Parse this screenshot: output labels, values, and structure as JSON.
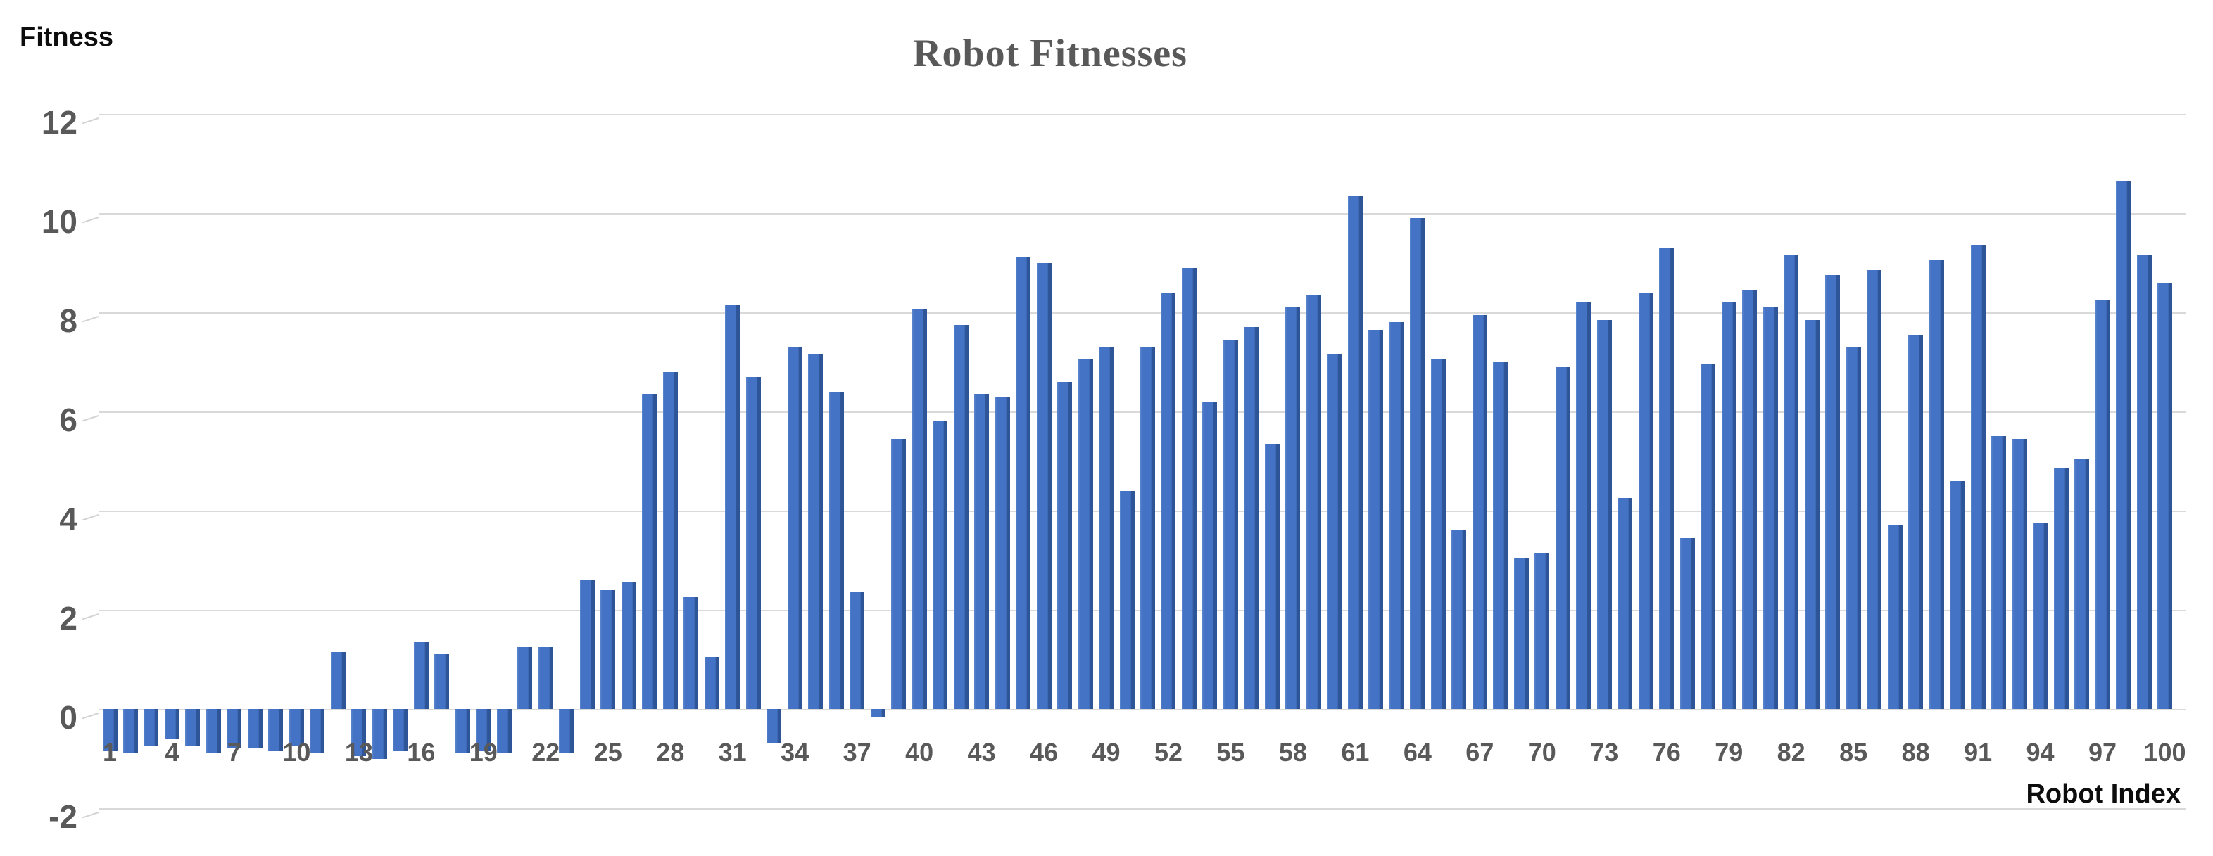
{
  "header": {
    "title": "Robot Fitnesses"
  },
  "y_axis": {
    "label": "Fitness"
  },
  "x_axis": {
    "label": "Robot Index"
  },
  "chart_data": {
    "type": "bar",
    "title": "Robot Fitnesses",
    "xlabel": "Robot Index",
    "ylabel": "Fitness",
    "ylim": [
      -2,
      12
    ],
    "grid": true,
    "legend": "none",
    "bar_color": "#4472C4",
    "bar_side_color": "#2E5597",
    "gridline_color": "#D9D9D9",
    "tick_color": "#595959",
    "title_color": "#595959",
    "y_ticks": [
      12,
      10,
      8,
      6,
      4,
      2,
      0,
      -2
    ],
    "x_tick_labels": [
      1,
      4,
      7,
      10,
      13,
      16,
      19,
      22,
      25,
      28,
      31,
      34,
      37,
      40,
      43,
      46,
      49,
      52,
      55,
      58,
      61,
      64,
      67,
      70,
      73,
      76,
      79,
      82,
      85,
      88,
      91,
      94,
      97,
      100
    ],
    "x": [
      1,
      2,
      3,
      4,
      5,
      6,
      7,
      8,
      9,
      10,
      11,
      12,
      13,
      14,
      15,
      16,
      17,
      18,
      19,
      20,
      21,
      22,
      23,
      24,
      25,
      26,
      27,
      28,
      29,
      30,
      31,
      32,
      33,
      34,
      35,
      36,
      37,
      38,
      39,
      40,
      41,
      42,
      43,
      44,
      45,
      46,
      47,
      48,
      49,
      50,
      51,
      52,
      53,
      54,
      55,
      56,
      57,
      58,
      59,
      60,
      61,
      62,
      63,
      64,
      65,
      66,
      67,
      68,
      69,
      70,
      71,
      72,
      73,
      74,
      75,
      76,
      77,
      78,
      79,
      80,
      81,
      82,
      83,
      84,
      85,
      86,
      87,
      88,
      89,
      90,
      91,
      92,
      93,
      94,
      95,
      96,
      97,
      98,
      99,
      100
    ],
    "values": [
      -0.85,
      -0.9,
      -0.75,
      -0.6,
      -0.75,
      -0.9,
      -0.8,
      -0.8,
      -0.85,
      -0.75,
      -0.9,
      1.15,
      -0.95,
      -1.0,
      -0.85,
      1.35,
      1.1,
      -0.9,
      -0.85,
      -0.9,
      1.25,
      1.25,
      -0.9,
      2.6,
      2.4,
      2.55,
      6.35,
      6.8,
      2.25,
      1.05,
      8.15,
      6.7,
      -0.7,
      7.3,
      7.15,
      6.4,
      2.35,
      -0.15,
      5.45,
      8.05,
      5.8,
      7.75,
      6.35,
      6.3,
      9.1,
      9.0,
      6.6,
      7.05,
      7.3,
      4.4,
      7.3,
      8.4,
      8.9,
      6.2,
      7.45,
      7.7,
      5.35,
      8.1,
      8.35,
      7.15,
      10.35,
      7.65,
      7.8,
      9.9,
      7.05,
      3.6,
      7.95,
      7.0,
      3.05,
      3.15,
      6.9,
      8.2,
      7.85,
      4.25,
      8.4,
      9.3,
      3.45,
      6.95,
      8.2,
      8.45,
      8.1,
      9.15,
      7.85,
      8.75,
      7.3,
      8.85,
      3.7,
      7.55,
      9.05,
      4.6,
      9.35,
      5.5,
      5.45,
      3.75,
      4.85,
      5.05,
      8.25,
      10.65,
      9.15,
      8.6
    ]
  }
}
